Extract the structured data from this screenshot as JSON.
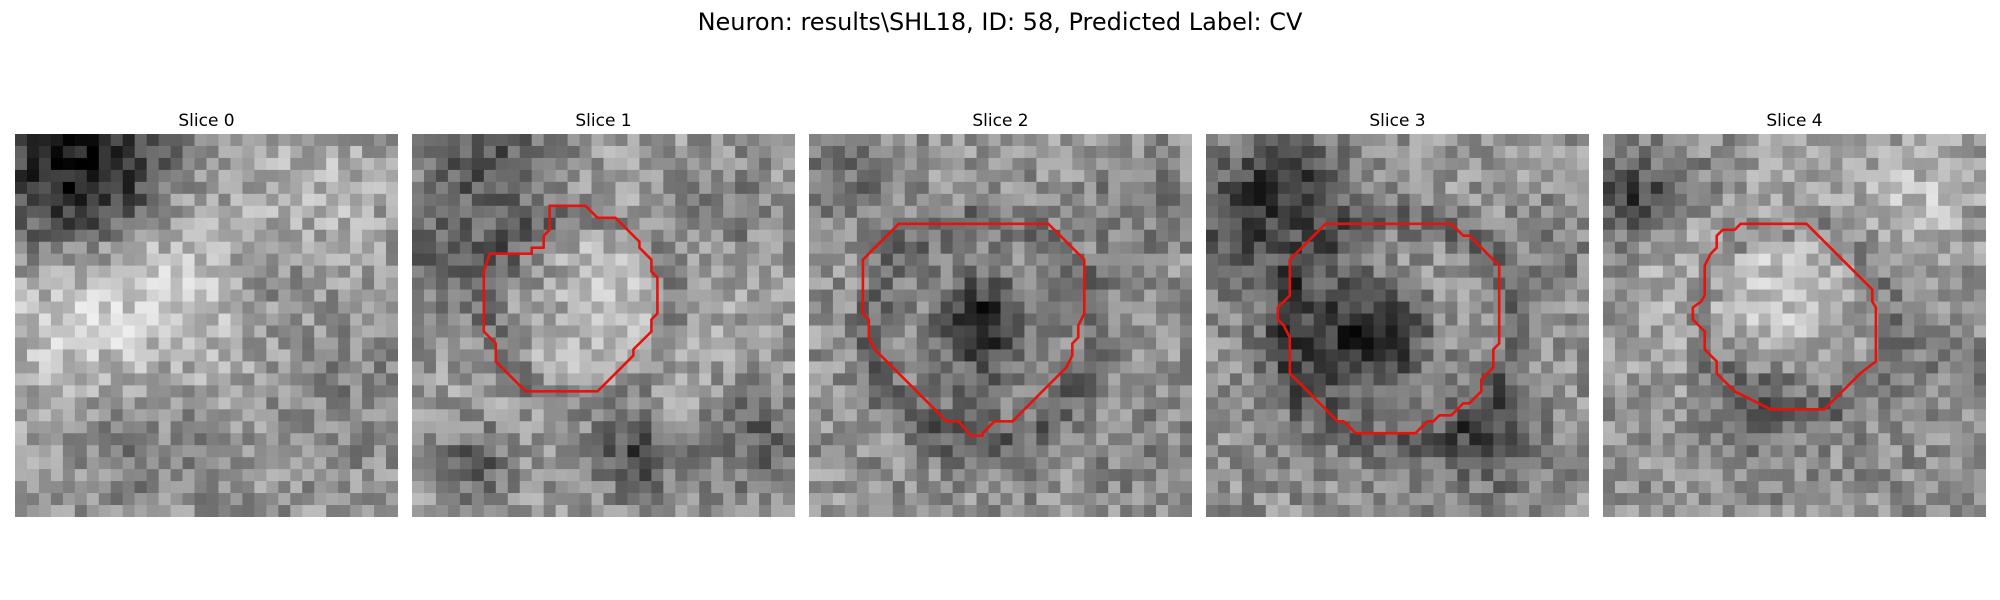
{
  "figure": {
    "title": "Neuron: results\\SHL18, ID: 58, Predicted Label: CV"
  },
  "slices": [
    {
      "title": "Slice 0",
      "has_contour": false
    },
    {
      "title": "Slice 1",
      "has_contour": true
    },
    {
      "title": "Slice 2",
      "has_contour": true
    },
    {
      "title": "Slice 3",
      "has_contour": true
    },
    {
      "title": "Slice 4",
      "has_contour": true
    }
  ],
  "style": {
    "contour_color": "#e8120c",
    "colormap": "grayscale"
  }
}
